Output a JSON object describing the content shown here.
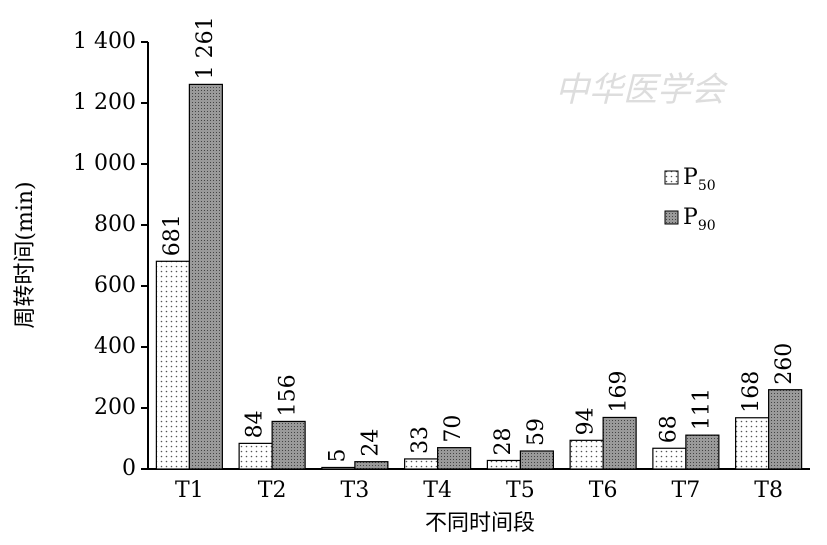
{
  "chart_data": {
    "type": "bar",
    "x_label": "不同时间段",
    "y_label": "周转时间(min)",
    "watermark": "中华医学会",
    "categories": [
      "T1",
      "T2",
      "T3",
      "T4",
      "T5",
      "T6",
      "T7",
      "T8"
    ],
    "series": [
      {
        "name": "P50",
        "color": "#ffffff",
        "values": [
          681,
          84,
          5,
          33,
          28,
          94,
          68,
          168
        ]
      },
      {
        "name": "P90",
        "color": "#888888",
        "values": [
          1261,
          156,
          24,
          70,
          59,
          169,
          111,
          260
        ],
        "value_labels": [
          "1 261",
          "156",
          "24",
          "70",
          "59",
          "169",
          "111",
          "260"
        ]
      }
    ],
    "ylim": [
      0,
      1400
    ],
    "yticks": [
      0,
      200,
      400,
      600,
      800,
      {
        "value": 1000,
        "label": "1 000"
      },
      {
        "value": 1200,
        "label": "1 200"
      },
      {
        "value": 1400,
        "label": "1 400"
      }
    ],
    "legend": "right"
  }
}
